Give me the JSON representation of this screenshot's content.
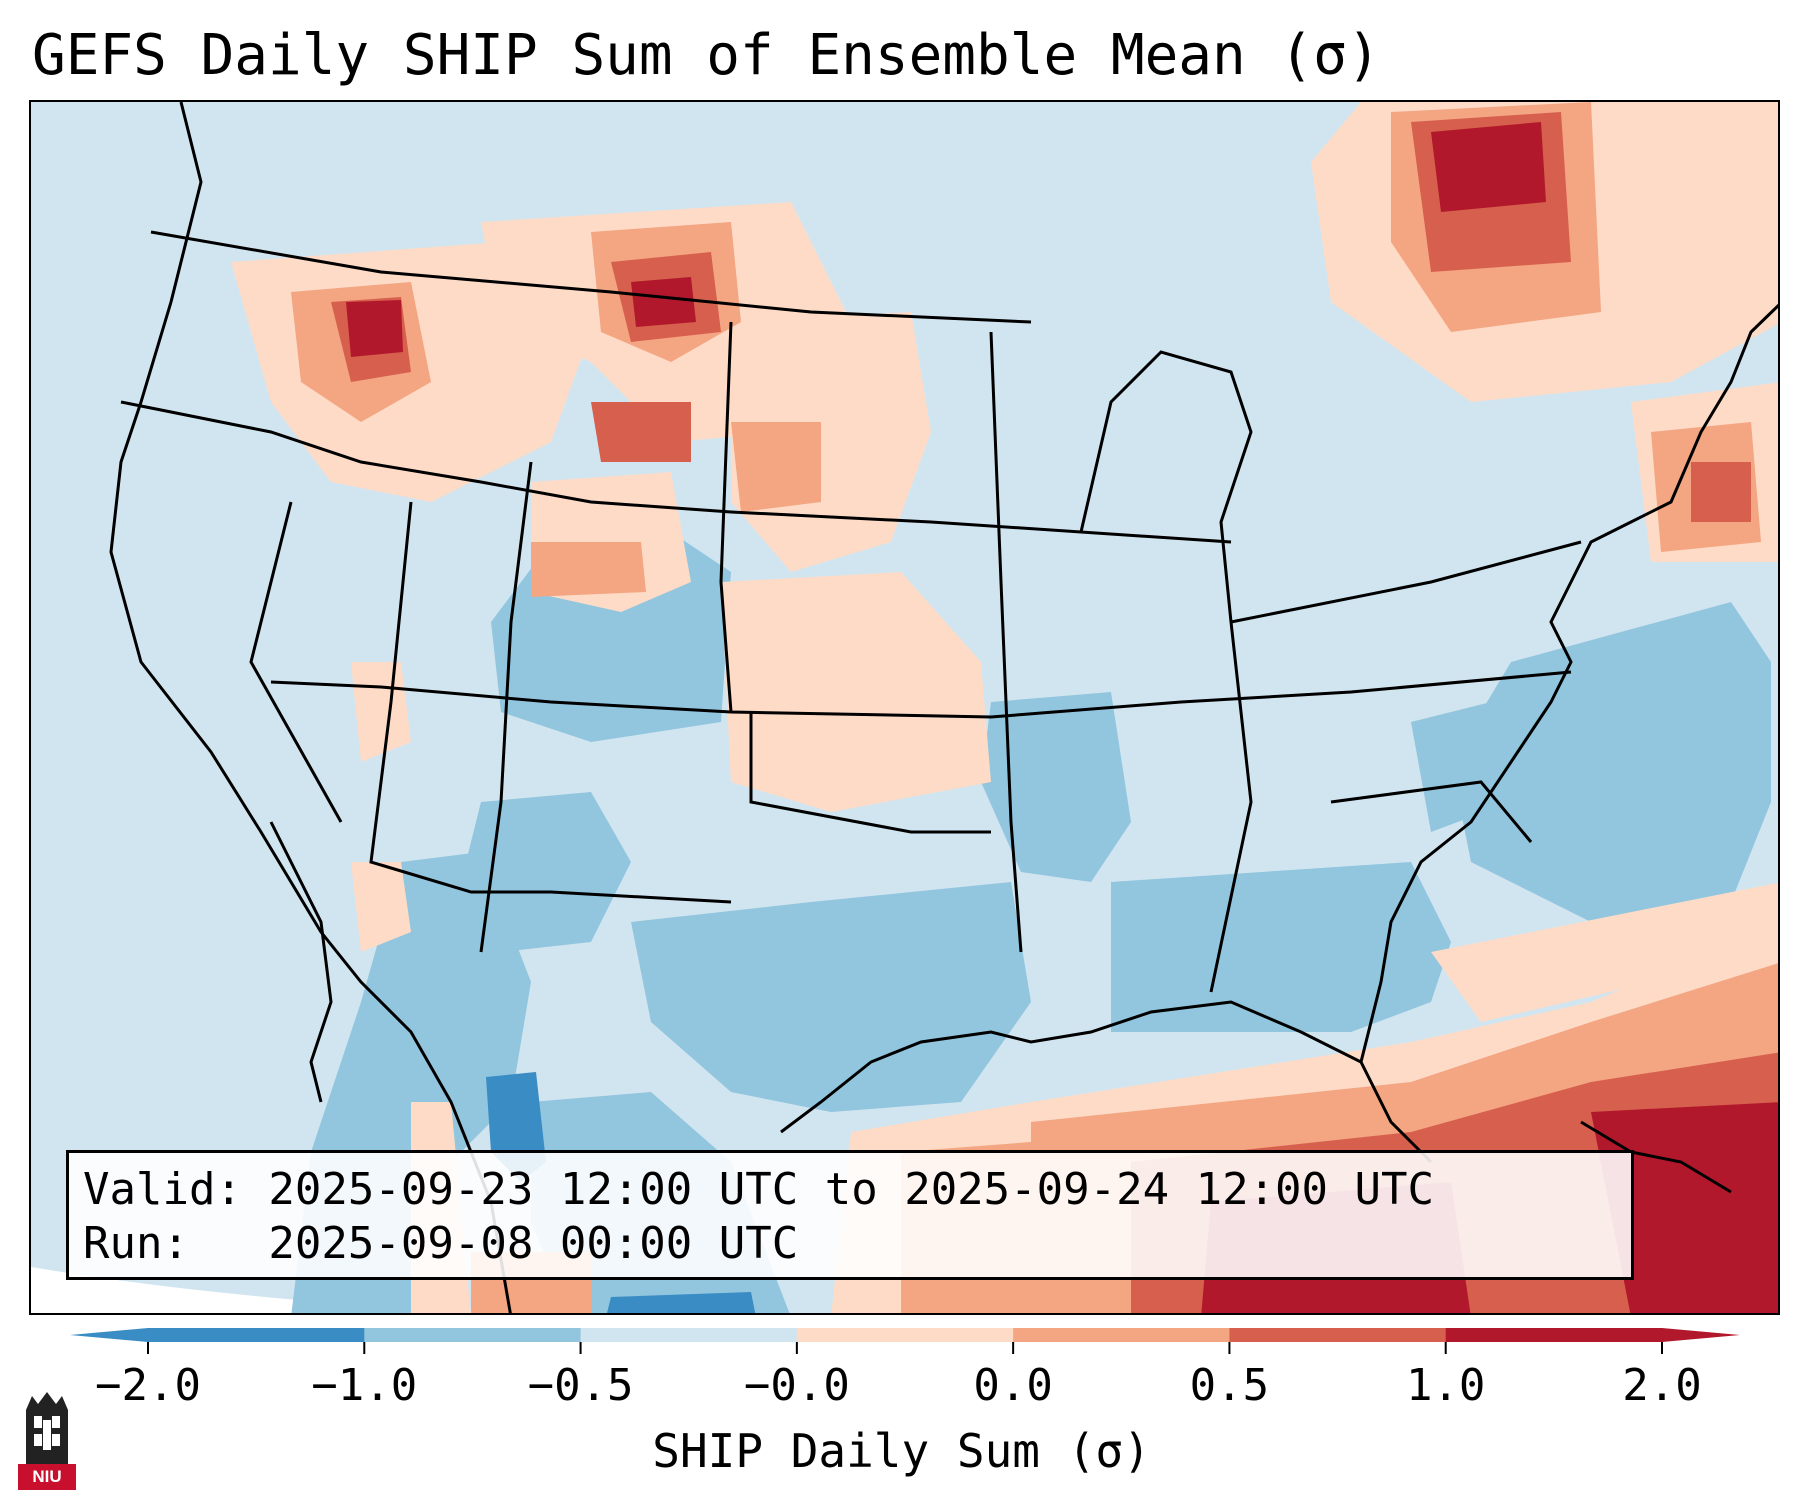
{
  "title": "GEFS Daily SHIP Sum of Ensemble Mean (σ)",
  "info": {
    "valid_line": "Valid: 2025-09-23 12:00 UTC to 2025-09-24 12:00 UTC",
    "run_line": "Run:   2025-09-08 00:00 UTC"
  },
  "colorbar": {
    "label": "SHIP Daily Sum (σ)",
    "ticks": [
      "−2.0",
      "−1.0",
      "−0.5",
      "−0.0",
      "0.0",
      "0.5",
      "1.0",
      "2.0"
    ],
    "colors": [
      "#3a8cc4",
      "#92c5de",
      "#d1e5f0",
      "#fddbc7",
      "#f4a582",
      "#d6604d",
      "#b2182b"
    ],
    "extend": "both"
  },
  "logo": {
    "text": "NIU"
  },
  "colors": {
    "strong_neg": "#3a8cc4",
    "mod_neg": "#92c5de",
    "weak_neg": "#d1e5f0",
    "weak_pos": "#fddbc7",
    "mod_pos": "#f4a582",
    "strong_pos": "#d6604d",
    "very_strong_pos": "#b2182b",
    "background_field": "#d1e5f0"
  }
}
